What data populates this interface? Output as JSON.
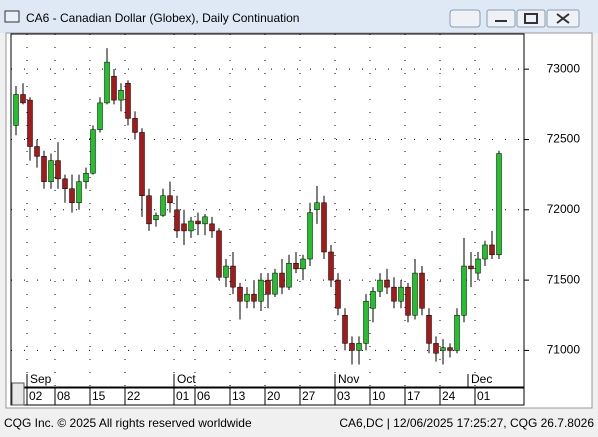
{
  "window_title": "CA6 - Canadian Dollar (Globex), Daily Continuation",
  "footer": {
    "left": "CQG Inc. © 2025 All rights reserved worldwide",
    "right": "CA6,DC | 12/06/2025 17:25:27, CQG 26.7.8026"
  },
  "chart_data": {
    "type": "candlestick",
    "x": [
      null,
      null,
      "02",
      null,
      null,
      null,
      "08",
      null,
      null,
      null,
      null,
      "15",
      null,
      null,
      null,
      null,
      "22",
      null,
      null,
      null,
      null,
      null,
      null,
      "01",
      null,
      null,
      "06",
      null,
      null,
      null,
      null,
      "13",
      null,
      null,
      null,
      null,
      "20",
      null,
      null,
      null,
      null,
      "27",
      null,
      null,
      null,
      null,
      "03",
      null,
      null,
      null,
      null,
      "10",
      null,
      null,
      null,
      null,
      "17",
      null,
      null,
      null,
      null,
      "24",
      null,
      null,
      null,
      null,
      "01",
      null,
      null,
      null,
      null
    ],
    "months": [
      null,
      null,
      "Sep",
      null,
      null,
      null,
      null,
      null,
      null,
      null,
      null,
      null,
      null,
      null,
      null,
      null,
      null,
      null,
      null,
      null,
      null,
      null,
      null,
      "Oct",
      null,
      null,
      null,
      null,
      null,
      null,
      null,
      null,
      null,
      null,
      null,
      null,
      null,
      null,
      null,
      null,
      null,
      null,
      null,
      null,
      null,
      null,
      "Nov",
      null,
      null,
      null,
      null,
      null,
      null,
      null,
      null,
      null,
      null,
      null,
      null,
      null,
      null,
      null,
      null,
      null,
      null,
      "Dec",
      null,
      null,
      null,
      null
    ],
    "open": [
      72600,
      72820,
      72780,
      72450,
      72380,
      72200,
      72350,
      72220,
      72150,
      72050,
      72200,
      72260,
      72570,
      72760,
      72950,
      72780,
      72900,
      72650,
      72550,
      72100,
      71930,
      71960,
      72100,
      72000,
      71900,
      71850,
      71920,
      71900,
      71900,
      71850,
      71520,
      71600,
      71450,
      71350,
      71400,
      71350,
      71500,
      71400,
      71550,
      71450,
      71620,
      71580,
      71650,
      72000,
      72050,
      71700,
      71500,
      71250,
      71050,
      71000,
      71050,
      71300,
      71420,
      71500,
      71450,
      71350,
      71450,
      71250,
      71550,
      71250,
      71050,
      71000,
      71020,
      71000,
      71250,
      71600,
      71550,
      71650,
      71750,
      71680
    ],
    "high": [
      72880,
      72900,
      72800,
      72500,
      72420,
      72400,
      72480,
      72250,
      72250,
      72250,
      72300,
      72600,
      72800,
      73150,
      73000,
      72900,
      72920,
      72700,
      72580,
      72150,
      71980,
      72150,
      72200,
      72100,
      72000,
      71950,
      71980,
      71970,
      71950,
      71870,
      71650,
      71700,
      71480,
      71450,
      71500,
      71550,
      71550,
      71580,
      71650,
      71680,
      71700,
      71680,
      72050,
      72170,
      72100,
      71750,
      71550,
      71300,
      71100,
      71100,
      71400,
      71450,
      71550,
      71580,
      71520,
      71500,
      71480,
      71650,
      71600,
      71300,
      71100,
      71080,
      71050,
      71300,
      71800,
      71700,
      71700,
      71780,
      71850,
      72420
    ],
    "low": [
      72530,
      72750,
      72350,
      72300,
      72150,
      72150,
      72150,
      72050,
      71980,
      72000,
      72150,
      72250,
      72550,
      72750,
      72750,
      72700,
      72600,
      72500,
      71950,
      71850,
      71880,
      71950,
      71980,
      71800,
      71750,
      71800,
      71820,
      71820,
      71800,
      71500,
      71450,
      71400,
      71220,
      71300,
      71300,
      71280,
      71300,
      71380,
      71400,
      71430,
      71550,
      71500,
      71600,
      71900,
      71650,
      71450,
      71250,
      71000,
      70900,
      70900,
      71000,
      71200,
      71380,
      71400,
      71300,
      71300,
      71200,
      71220,
      71250,
      70980,
      70920,
      70900,
      70950,
      70980,
      71200,
      71450,
      71500,
      71600,
      71650,
      71650
    ],
    "close": [
      72820,
      72760,
      72450,
      72380,
      72200,
      72350,
      72220,
      72150,
      72050,
      72200,
      72260,
      72570,
      72760,
      73050,
      72780,
      72850,
      72650,
      72550,
      72100,
      71900,
      71960,
      72100,
      72050,
      71850,
      71850,
      71920,
      71900,
      71950,
      71850,
      71520,
      71600,
      71450,
      71350,
      71400,
      71350,
      71500,
      71400,
      71550,
      71450,
      71620,
      71580,
      71650,
      71980,
      72050,
      71700,
      71500,
      71300,
      71050,
      71000,
      71050,
      71350,
      71420,
      71500,
      71450,
      71350,
      71450,
      71250,
      71550,
      71300,
      71050,
      70980,
      71020,
      71000,
      71250,
      71600,
      71580,
      71650,
      71750,
      71680,
      72400
    ],
    "up_color": "#22c02a",
    "down_color": "#a41a1a",
    "ylim": [
      70740,
      73250
    ],
    "yticks": [
      71000,
      71500,
      72000,
      72500,
      73000
    ],
    "grid": true
  }
}
